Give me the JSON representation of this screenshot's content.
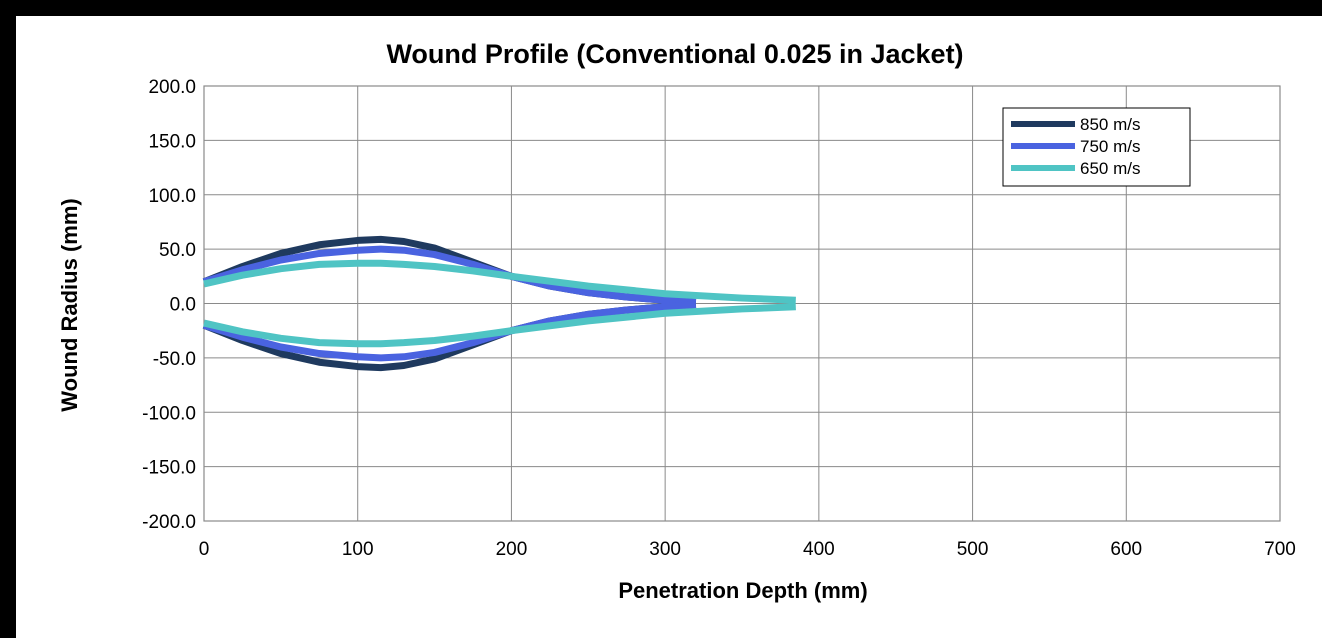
{
  "chart_data": {
    "type": "line",
    "title": "Wound Profile (Conventional 0.025 in Jacket)",
    "xlabel": "Penetration Depth (mm)",
    "ylabel": "Wound Radius (mm)",
    "xlim": [
      0,
      700
    ],
    "ylim": [
      -200,
      200
    ],
    "x_ticks": [
      0,
      100,
      200,
      300,
      400,
      500,
      600,
      700
    ],
    "x_tick_labels": [
      "0",
      "100",
      "200",
      "300",
      "400",
      "500",
      "600",
      "700"
    ],
    "y_ticks": [
      200,
      150,
      100,
      50,
      0,
      -50,
      -100,
      -150,
      -200
    ],
    "y_tick_labels": [
      "200.0",
      "150.0",
      "100.0",
      "50.0",
      "0.0",
      "-50.0",
      "-100.0",
      "-150.0",
      "-200.0"
    ],
    "grid": true,
    "legend_position": "top-right",
    "series": [
      {
        "name": "850 m/s",
        "color": "#1f3a5f",
        "x": [
          0,
          25,
          50,
          75,
          100,
          115,
          130,
          150,
          175,
          200,
          225,
          250,
          275,
          300,
          320
        ],
        "y": [
          20,
          34,
          46,
          54,
          58,
          59,
          57,
          51,
          38,
          25,
          16,
          10,
          6,
          3,
          1
        ]
      },
      {
        "name": "750 m/s",
        "color": "#4a63e0",
        "x": [
          0,
          25,
          50,
          75,
          100,
          115,
          130,
          150,
          175,
          200,
          225,
          250,
          275,
          300,
          320
        ],
        "y": [
          20,
          31,
          40,
          46,
          49,
          50,
          49,
          45,
          36,
          25,
          16,
          10,
          6,
          3,
          1
        ]
      },
      {
        "name": "650 m/s",
        "color": "#4fc4c4",
        "x": [
          0,
          25,
          50,
          75,
          100,
          115,
          130,
          150,
          175,
          200,
          250,
          300,
          350,
          385
        ],
        "y": [
          18,
          26,
          32,
          36,
          37,
          37,
          36,
          34,
          30,
          25,
          16,
          9,
          5,
          3
        ]
      }
    ]
  }
}
